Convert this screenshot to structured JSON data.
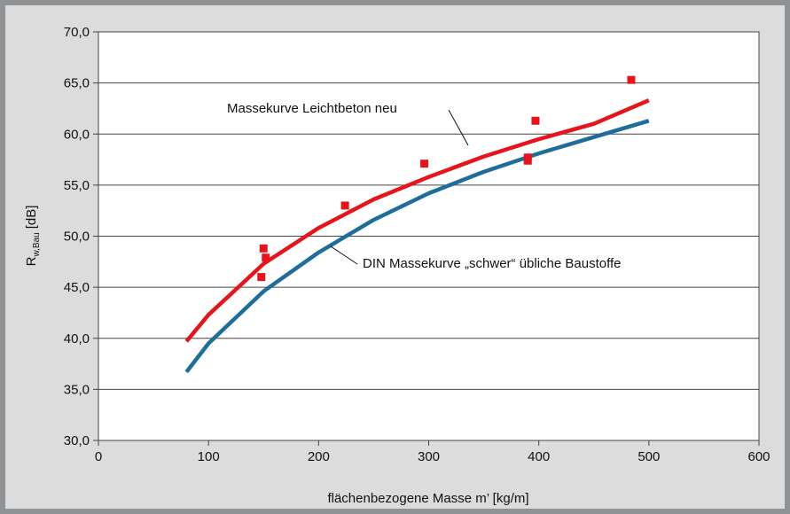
{
  "chart_data": {
    "type": "line",
    "title": "",
    "xlabel": "flächenbezogene Masse m’ [kg/m]",
    "ylabel": {
      "main": "R",
      "sub": "w,Bau",
      "unit": "[dB]"
    },
    "xlim": [
      0,
      600
    ],
    "ylim": [
      30,
      70
    ],
    "x_ticks": [
      "0",
      "100",
      "200",
      "300",
      "400",
      "500",
      "600"
    ],
    "y_ticks": [
      "30,0",
      "35,0",
      "40,0",
      "45,0",
      "50,0",
      "55,0",
      "60,0",
      "65,0",
      "70,0"
    ],
    "grid": "horizontal",
    "series": [
      {
        "name": "Massekurve Leichtbeton neu",
        "color": "#e8141b",
        "x": [
          80,
          100,
          150,
          200,
          250,
          300,
          350,
          400,
          450,
          500
        ],
        "y": [
          39.7,
          42.3,
          47.3,
          50.8,
          53.6,
          55.8,
          57.8,
          59.5,
          61.0,
          63.3
        ]
      },
      {
        "name": "DIN Massekurve „schwer“ übliche Baustoffe",
        "color": "#1f6d9b",
        "x": [
          80,
          100,
          150,
          200,
          250,
          300,
          350,
          400,
          450,
          500
        ],
        "y": [
          36.7,
          39.5,
          44.6,
          48.4,
          51.6,
          54.2,
          56.3,
          58.1,
          59.7,
          61.3
        ]
      }
    ],
    "points": {
      "color": "#e8141b",
      "x": [
        148,
        150,
        152,
        224,
        296,
        390,
        390,
        397,
        484
      ],
      "y": [
        46.0,
        48.8,
        47.9,
        53.0,
        57.1,
        57.4,
        57.7,
        61.3,
        65.3
      ]
    },
    "annotations": [
      {
        "text": "Massekurve Leichtbeton neu",
        "series": 0
      },
      {
        "text": "DIN Massekurve „schwer“ übliche Baustoffe",
        "series": 1
      }
    ]
  }
}
